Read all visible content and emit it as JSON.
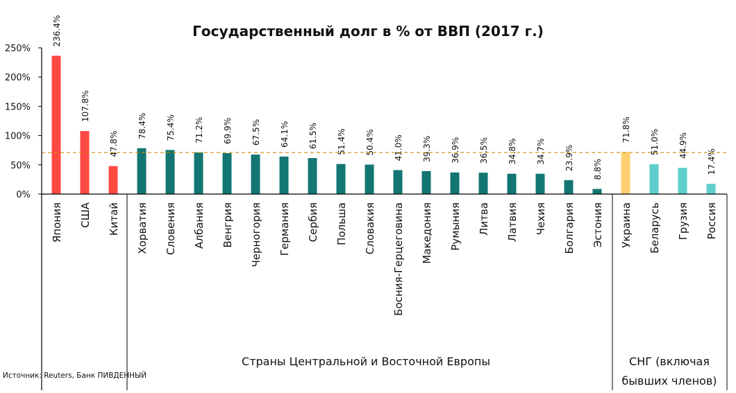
{
  "chart_data": {
    "type": "bar",
    "title": "Государственный долг в % от ВВП (2017 г.)",
    "source": "Источник: Reuters, Банк ПИВДЕННЫЙ",
    "ylim": [
      0,
      250
    ],
    "yticks": [
      "0%",
      "50%",
      "100%",
      "150%",
      "200%",
      "250%"
    ],
    "ytick_values": [
      0,
      50,
      100,
      150,
      200,
      250
    ],
    "grid": false,
    "reference_line": {
      "value": 71,
      "color": "#D08A00",
      "style": "dashed"
    },
    "categories": [
      "Япония",
      "США",
      "Китай",
      "Хорватия",
      "Словения",
      "Албания",
      "Венгрия",
      "Черногория",
      "Германия",
      "Сербия",
      "Польша",
      "Словакия",
      "Босния-Герцеговина",
      "Македония",
      "Румыния",
      "Литва",
      "Латвия",
      "Чехия",
      "Болгария",
      "Эстония",
      "Украина",
      "Беларусь",
      "Грузия",
      "Россия"
    ],
    "values": [
      236.4,
      107.8,
      47.8,
      78.4,
      75.4,
      71.2,
      69.9,
      67.5,
      64.1,
      61.5,
      51.4,
      50.4,
      41.0,
      39.3,
      36.9,
      36.5,
      34.8,
      34.7,
      23.9,
      8.8,
      71.8,
      51.0,
      44.9,
      17.4
    ],
    "data_labels": [
      "236.4%",
      "107.8%",
      "47.8%",
      "78.4%",
      "75.4%",
      "71.2%",
      "69.9%",
      "67.5%",
      "64.1%",
      "61.5%",
      "51.4%",
      "50.4%",
      "41.0%",
      "39.3%",
      "36.9%",
      "36.5%",
      "34.8%",
      "34.7%",
      "23.9%",
      "8.8%",
      "71.8%",
      "51.0%",
      "44.9%",
      "17.4%"
    ],
    "colors": [
      "#FF4943",
      "#FF4943",
      "#FF4943",
      "#137673",
      "#137673",
      "#137673",
      "#137673",
      "#137673",
      "#137673",
      "#137673",
      "#137673",
      "#137673",
      "#137673",
      "#137673",
      "#137673",
      "#137673",
      "#137673",
      "#137673",
      "#137673",
      "#137673",
      "#FFCF70",
      "#5ECECC",
      "#5ECECC",
      "#5ECECC"
    ],
    "groups": [
      {
        "label": "",
        "from": 0,
        "to": 2
      },
      {
        "label": "Страны Центральной и Восточной Европы",
        "from": 3,
        "to": 19
      },
      {
        "label_line1": "СНГ (включая",
        "label_line2": "бывших членов)",
        "from": 20,
        "to": 23
      }
    ]
  }
}
